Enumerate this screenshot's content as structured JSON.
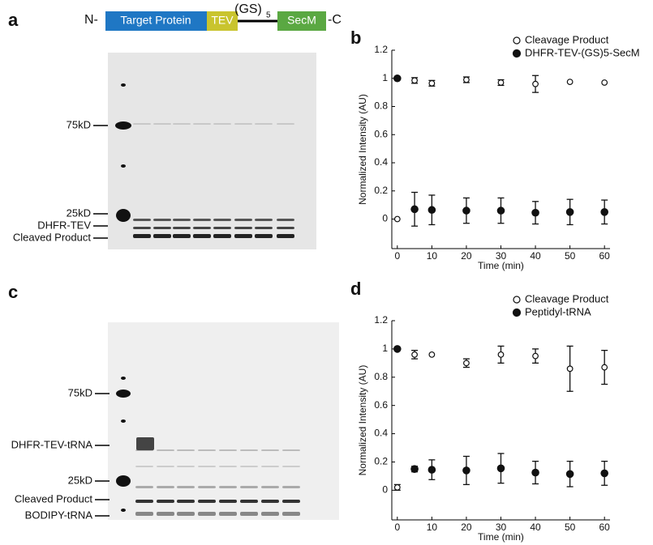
{
  "panel_labels": [
    "a",
    "b",
    "c",
    "d"
  ],
  "construct": {
    "n_term": "N-",
    "target": "Target Protein",
    "tev": "TEV",
    "linker": "(GS)",
    "linker_repeat": "5",
    "secm": "SecM",
    "c_term": "-C"
  },
  "gel_a": {
    "labels": [
      "75kD",
      "25kD",
      "DHFR-TEV",
      "Cleaved Product"
    ]
  },
  "gel_c": {
    "labels": [
      "75kD",
      "DHFR-TEV-tRNA",
      "25kD",
      "Cleaved Product",
      "BODIPY-tRNA"
    ]
  },
  "chart_data": [
    {
      "type": "scatter",
      "xlabel": "Time (min)",
      "ylabel": "Normalized Intensity (AU)",
      "x": [
        0,
        5,
        10,
        20,
        30,
        40,
        50,
        60
      ],
      "xlim": [
        -1.6,
        61.6
      ],
      "ylim": [
        -0.21,
        1.2
      ],
      "xticks": [
        0,
        10,
        20,
        30,
        40,
        50,
        60
      ],
      "yticks": [
        0,
        0.2,
        0.4,
        0.6,
        0.8,
        1,
        1.2
      ],
      "series": [
        {
          "name": "Cleavage Product",
          "marker": "open",
          "color": "#111111",
          "values": [
            0,
            0.985,
            0.965,
            0.99,
            0.97,
            0.96,
            0.975,
            0.97
          ],
          "errors": [
            null,
            0.02,
            0.02,
            0.02,
            0.02,
            0.06,
            null,
            null
          ]
        },
        {
          "name": "DHFR-TEV-(GS)5-SecM",
          "marker": "filled",
          "color": "#111111",
          "values": [
            1,
            0.07,
            0.065,
            0.06,
            0.06,
            0.045,
            0.05,
            0.05
          ],
          "errors": [
            null,
            0.12,
            0.105,
            0.09,
            0.09,
            0.08,
            0.09,
            0.085
          ]
        }
      ]
    },
    {
      "type": "scatter",
      "xlabel": "Time (min)",
      "ylabel": "Normalized Intensity (AU)",
      "x": [
        0,
        5,
        10,
        20,
        30,
        40,
        50,
        60
      ],
      "xlim": [
        -1.6,
        61.6
      ],
      "ylim": [
        -0.21,
        1.2
      ],
      "xticks": [
        0,
        10,
        20,
        30,
        40,
        50,
        60
      ],
      "yticks": [
        0,
        0.2,
        0.4,
        0.6,
        0.8,
        1,
        1.2
      ],
      "series": [
        {
          "name": "Cleavage Product",
          "marker": "open",
          "color": "#111111",
          "values": [
            0.02,
            0.96,
            0.96,
            0.9,
            0.96,
            0.95,
            0.86,
            0.87
          ],
          "errors": [
            0.02,
            0.03,
            null,
            0.03,
            0.06,
            0.05,
            0.16,
            0.12
          ]
        },
        {
          "name": "Peptidyl-tRNA",
          "marker": "filled",
          "color": "#111111",
          "values": [
            1,
            0.15,
            0.145,
            0.14,
            0.155,
            0.125,
            0.115,
            0.12
          ],
          "errors": [
            null,
            0.02,
            0.07,
            0.1,
            0.105,
            0.08,
            0.09,
            0.085
          ]
        }
      ]
    }
  ]
}
